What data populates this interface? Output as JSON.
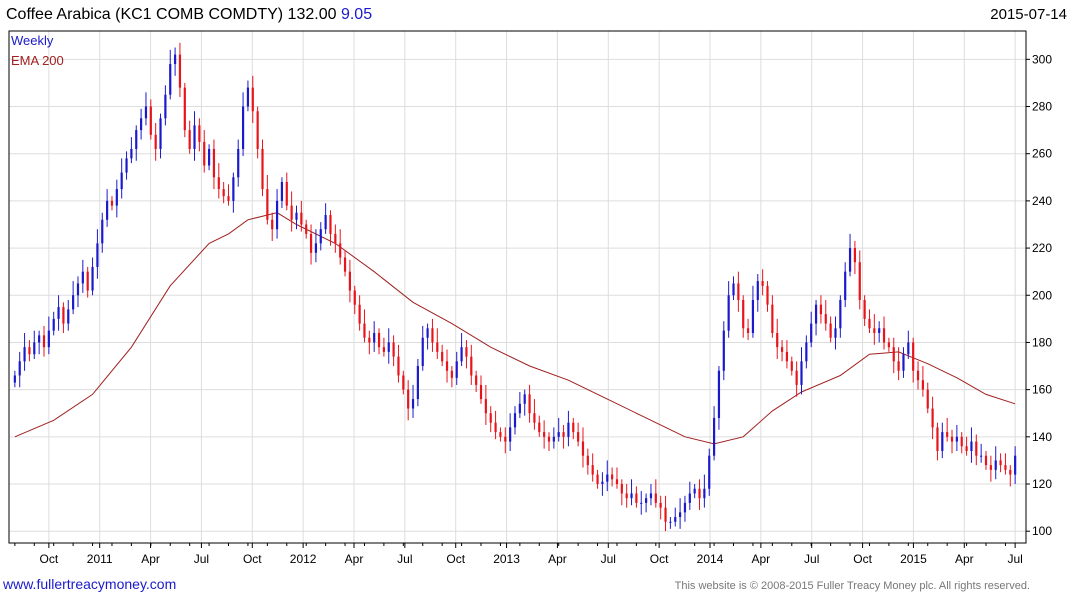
{
  "header": {
    "title_prefix": "Coffee Arabica  (KC1 COMB COMDTY) 132.00",
    "change": "9.05",
    "date": "2015-07-14"
  },
  "legend": {
    "weekly": "Weekly",
    "ema": "EMA 200"
  },
  "footer": {
    "website": "www.fullertreacymoney.com",
    "copyright": "This website is © 2008-2015 Fuller Treacy Money plc. All rights reserved."
  },
  "colors": {
    "up": "#1a1acc",
    "down": "#e8141b",
    "ema": "#a02020",
    "grid": "#dddddd",
    "axis": "#000000"
  },
  "chart_data": {
    "type": "candlestick",
    "frequency": "weekly",
    "x_tick_labels": [
      "Oct",
      "2011",
      "Apr",
      "Jul",
      "Oct",
      "2012",
      "Apr",
      "Jul",
      "Oct",
      "2013",
      "Apr",
      "Jul",
      "Oct",
      "2014",
      "Apr",
      "Jul",
      "Oct",
      "2015",
      "Apr",
      "Jul"
    ],
    "y_ticks": [
      100,
      120,
      140,
      160,
      180,
      200,
      220,
      240,
      260,
      280,
      300
    ],
    "ylim": [
      95,
      312
    ],
    "grid": true,
    "legend_position": "top-left",
    "close_series": [
      [
        0,
        166
      ],
      [
        1,
        172
      ],
      [
        2,
        178
      ],
      [
        3,
        175
      ],
      [
        4,
        180
      ],
      [
        5,
        183
      ],
      [
        6,
        178
      ],
      [
        7,
        185
      ],
      [
        8,
        190
      ],
      [
        9,
        195
      ],
      [
        10,
        188
      ],
      [
        11,
        194
      ],
      [
        12,
        200
      ],
      [
        13,
        205
      ],
      [
        14,
        210
      ],
      [
        15,
        202
      ],
      [
        16,
        212
      ],
      [
        17,
        222
      ],
      [
        18,
        232
      ],
      [
        19,
        240
      ],
      [
        20,
        238
      ],
      [
        21,
        245
      ],
      [
        22,
        252
      ],
      [
        23,
        258
      ],
      [
        24,
        262
      ],
      [
        25,
        270
      ],
      [
        26,
        275
      ],
      [
        27,
        280
      ],
      [
        28,
        268
      ],
      [
        29,
        262
      ],
      [
        30,
        275
      ],
      [
        31,
        285
      ],
      [
        32,
        298
      ],
      [
        33,
        302
      ],
      [
        34,
        288
      ],
      [
        35,
        270
      ],
      [
        36,
        262
      ],
      [
        37,
        272
      ],
      [
        38,
        265
      ],
      [
        39,
        255
      ],
      [
        40,
        262
      ],
      [
        41,
        250
      ],
      [
        42,
        245
      ],
      [
        43,
        242
      ],
      [
        44,
        240
      ],
      [
        45,
        250
      ],
      [
        46,
        262
      ],
      [
        47,
        280
      ],
      [
        48,
        288
      ],
      [
        49,
        278
      ],
      [
        50,
        262
      ],
      [
        51,
        245
      ],
      [
        52,
        232
      ],
      [
        53,
        228
      ],
      [
        54,
        240
      ],
      [
        55,
        248
      ],
      [
        56,
        238
      ],
      [
        57,
        232
      ],
      [
        58,
        235
      ],
      [
        59,
        230
      ],
      [
        60,
        226
      ],
      [
        61,
        218
      ],
      [
        62,
        222
      ],
      [
        63,
        228
      ],
      [
        64,
        234
      ],
      [
        65,
        226
      ],
      [
        66,
        222
      ],
      [
        67,
        216
      ],
      [
        68,
        210
      ],
      [
        69,
        202
      ],
      [
        70,
        196
      ],
      [
        71,
        188
      ],
      [
        72,
        182
      ],
      [
        73,
        180
      ],
      [
        74,
        184
      ],
      [
        75,
        178
      ],
      [
        76,
        176
      ],
      [
        77,
        180
      ],
      [
        78,
        174
      ],
      [
        79,
        166
      ],
      [
        80,
        160
      ],
      [
        81,
        152
      ],
      [
        82,
        156
      ],
      [
        83,
        170
      ],
      [
        84,
        182
      ],
      [
        85,
        186
      ],
      [
        86,
        180
      ],
      [
        87,
        176
      ],
      [
        88,
        172
      ],
      [
        89,
        168
      ],
      [
        90,
        165
      ],
      [
        91,
        172
      ],
      [
        92,
        178
      ],
      [
        93,
        174
      ],
      [
        94,
        166
      ],
      [
        95,
        162
      ],
      [
        96,
        156
      ],
      [
        97,
        150
      ],
      [
        98,
        146
      ],
      [
        99,
        142
      ],
      [
        100,
        140
      ],
      [
        101,
        138
      ],
      [
        102,
        144
      ],
      [
        103,
        150
      ],
      [
        104,
        154
      ],
      [
        105,
        158
      ],
      [
        106,
        150
      ],
      [
        107,
        146
      ],
      [
        108,
        142
      ],
      [
        109,
        140
      ],
      [
        110,
        138
      ],
      [
        111,
        140
      ],
      [
        112,
        142
      ],
      [
        113,
        140
      ],
      [
        114,
        146
      ],
      [
        115,
        142
      ],
      [
        116,
        138
      ],
      [
        117,
        132
      ],
      [
        118,
        128
      ],
      [
        119,
        124
      ],
      [
        120,
        120
      ],
      [
        121,
        121
      ],
      [
        122,
        124
      ],
      [
        123,
        122
      ],
      [
        124,
        120
      ],
      [
        125,
        116
      ],
      [
        126,
        114
      ],
      [
        127,
        116
      ],
      [
        128,
        112
      ],
      [
        129,
        112
      ],
      [
        130,
        114
      ],
      [
        131,
        116
      ],
      [
        132,
        112
      ],
      [
        133,
        110
      ],
      [
        134,
        104
      ],
      [
        135,
        104
      ],
      [
        136,
        106
      ],
      [
        137,
        108
      ],
      [
        138,
        112
      ],
      [
        139,
        116
      ],
      [
        140,
        118
      ],
      [
        141,
        114
      ],
      [
        142,
        118
      ],
      [
        143,
        132
      ],
      [
        144,
        148
      ],
      [
        145,
        168
      ],
      [
        146,
        185
      ],
      [
        147,
        200
      ],
      [
        148,
        205
      ],
      [
        149,
        198
      ],
      [
        150,
        186
      ],
      [
        151,
        184
      ],
      [
        152,
        198
      ],
      [
        153,
        206
      ],
      [
        154,
        204
      ],
      [
        155,
        196
      ],
      [
        156,
        184
      ],
      [
        157,
        178
      ],
      [
        158,
        176
      ],
      [
        159,
        172
      ],
      [
        160,
        168
      ],
      [
        161,
        162
      ],
      [
        162,
        172
      ],
      [
        163,
        180
      ],
      [
        164,
        188
      ],
      [
        165,
        196
      ],
      [
        166,
        192
      ],
      [
        167,
        188
      ],
      [
        168,
        182
      ],
      [
        169,
        186
      ],
      [
        170,
        198
      ],
      [
        171,
        210
      ],
      [
        172,
        220
      ],
      [
        173,
        214
      ],
      [
        174,
        198
      ],
      [
        175,
        190
      ],
      [
        176,
        186
      ],
      [
        177,
        184
      ],
      [
        178,
        186
      ],
      [
        179,
        180
      ],
      [
        180,
        178
      ],
      [
        181,
        172
      ],
      [
        182,
        168
      ],
      [
        183,
        175
      ],
      [
        184,
        180
      ],
      [
        185,
        168
      ],
      [
        186,
        164
      ],
      [
        187,
        160
      ],
      [
        188,
        152
      ],
      [
        189,
        144
      ],
      [
        190,
        134
      ],
      [
        191,
        142
      ],
      [
        192,
        140
      ],
      [
        193,
        138
      ],
      [
        194,
        140
      ],
      [
        195,
        136
      ],
      [
        196,
        134
      ],
      [
        197,
        138
      ],
      [
        198,
        132
      ],
      [
        199,
        132
      ],
      [
        200,
        128
      ],
      [
        201,
        126
      ],
      [
        202,
        130
      ],
      [
        203,
        128
      ],
      [
        204,
        126
      ],
      [
        205,
        124
      ],
      [
        206,
        132
      ]
    ],
    "ema_series": [
      [
        0,
        140
      ],
      [
        8,
        147
      ],
      [
        16,
        158
      ],
      [
        24,
        178
      ],
      [
        32,
        204
      ],
      [
        40,
        222
      ],
      [
        44,
        226
      ],
      [
        48,
        232
      ],
      [
        54,
        235
      ],
      [
        58,
        230
      ],
      [
        66,
        222
      ],
      [
        74,
        210
      ],
      [
        82,
        197
      ],
      [
        90,
        188
      ],
      [
        98,
        178
      ],
      [
        106,
        170
      ],
      [
        114,
        164
      ],
      [
        122,
        156
      ],
      [
        130,
        148
      ],
      [
        138,
        140
      ],
      [
        144,
        137
      ],
      [
        150,
        140
      ],
      [
        156,
        151
      ],
      [
        162,
        159
      ],
      [
        170,
        166
      ],
      [
        176,
        175
      ],
      [
        182,
        176
      ],
      [
        188,
        171
      ],
      [
        194,
        165
      ],
      [
        200,
        158
      ],
      [
        206,
        154
      ]
    ]
  }
}
